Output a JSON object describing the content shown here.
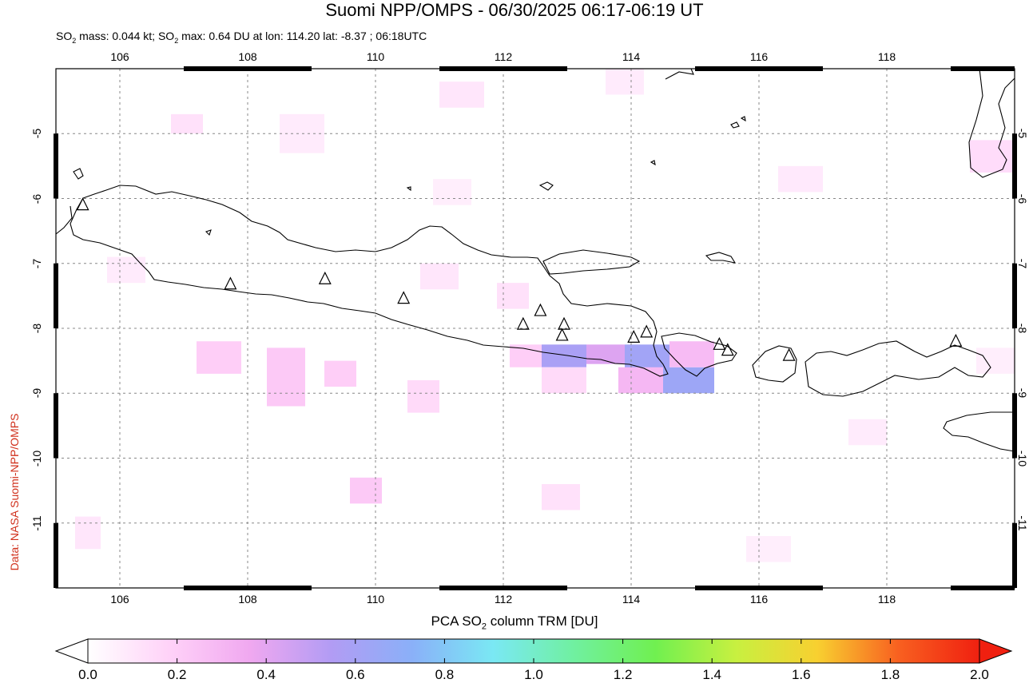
{
  "header": {
    "title": "Suomi NPP/OMPS - 06/30/2025 06:17-06:19 UT",
    "subtitle_parts": {
      "mass_prefix": "SO",
      "mass_sub": "2",
      "mass_text": " mass: 0.044 kt; SO",
      "max_sub": "2",
      "max_text": " max: 0.64 DU at lon: 114.20 lat: -8.37 ; 06:18UTC"
    }
  },
  "side_label": "Data: NASA Suomi-NPP/OMPS",
  "map": {
    "lon_range": [
      105,
      120
    ],
    "lat_range": [
      -12,
      -4
    ],
    "lon_ticks": [
      "106",
      "108",
      "110",
      "112",
      "114",
      "116",
      "118"
    ],
    "lat_ticks": [
      "-5",
      "-6",
      "-7",
      "-8",
      "-9",
      "-10",
      "-11"
    ],
    "volcano_icon": "triangle-icon",
    "volcanoes": [
      {
        "lon": 105.42,
        "lat": -6.1
      },
      {
        "lon": 107.73,
        "lat": -7.32
      },
      {
        "lon": 109.21,
        "lat": -7.24
      },
      {
        "lon": 110.44,
        "lat": -7.54
      },
      {
        "lon": 112.31,
        "lat": -7.94
      },
      {
        "lon": 112.58,
        "lat": -7.73
      },
      {
        "lon": 112.95,
        "lat": -7.94
      },
      {
        "lon": 112.92,
        "lat": -8.11
      },
      {
        "lon": 114.04,
        "lat": -8.14
      },
      {
        "lon": 114.24,
        "lat": -8.06
      },
      {
        "lon": 115.38,
        "lat": -8.25
      },
      {
        "lon": 115.51,
        "lat": -8.34
      },
      {
        "lon": 116.47,
        "lat": -8.42
      },
      {
        "lon": 119.08,
        "lat": -8.2
      }
    ],
    "so2_cells": [
      {
        "lon0": 112.6,
        "lat0": -8.25,
        "lon1": 113.3,
        "lat1": -8.6,
        "value": 0.58
      },
      {
        "lon0": 113.3,
        "lat0": -8.25,
        "lon1": 113.9,
        "lat1": -8.55,
        "value": 0.42
      },
      {
        "lon0": 113.9,
        "lat0": -8.25,
        "lon1": 114.6,
        "lat1": -8.65,
        "value": 0.62
      },
      {
        "lon0": 114.5,
        "lat0": -8.6,
        "lon1": 115.3,
        "lat1": -9.0,
        "value": 0.64
      },
      {
        "lon0": 113.8,
        "lat0": -8.6,
        "lon1": 114.5,
        "lat1": -9.0,
        "value": 0.3
      },
      {
        "lon0": 114.6,
        "lat0": -8.2,
        "lon1": 115.3,
        "lat1": -8.6,
        "value": 0.28
      },
      {
        "lon0": 112.1,
        "lat0": -8.25,
        "lon1": 112.6,
        "lat1": -8.6,
        "value": 0.2
      },
      {
        "lon0": 112.6,
        "lat0": -8.6,
        "lon1": 113.3,
        "lat1": -9.0,
        "value": 0.15
      },
      {
        "lon0": 107.2,
        "lat0": -8.2,
        "lon1": 107.9,
        "lat1": -8.7,
        "value": 0.2
      },
      {
        "lon0": 108.3,
        "lat0": -8.3,
        "lon1": 108.9,
        "lat1": -9.2,
        "value": 0.22
      },
      {
        "lon0": 109.2,
        "lat0": -8.5,
        "lon1": 109.7,
        "lat1": -8.9,
        "value": 0.2
      },
      {
        "lon0": 110.5,
        "lat0": -8.8,
        "lon1": 111.0,
        "lat1": -9.3,
        "value": 0.15
      },
      {
        "lon0": 109.6,
        "lat0": -10.3,
        "lon1": 110.1,
        "lat1": -10.7,
        "value": 0.22
      },
      {
        "lon0": 112.6,
        "lat0": -10.4,
        "lon1": 113.2,
        "lat1": -10.8,
        "value": 0.12
      },
      {
        "lon0": 108.5,
        "lat0": -4.7,
        "lon1": 109.2,
        "lat1": -5.3,
        "value": 0.08
      },
      {
        "lon0": 111.0,
        "lat0": -4.2,
        "lon1": 111.7,
        "lat1": -4.6,
        "value": 0.1
      },
      {
        "lon0": 106.8,
        "lat0": -4.7,
        "lon1": 107.3,
        "lat1": -5.0,
        "value": 0.12
      },
      {
        "lon0": 111.9,
        "lat0": -7.3,
        "lon1": 112.4,
        "lat1": -7.7,
        "value": 0.12
      },
      {
        "lon0": 110.7,
        "lat0": -7.0,
        "lon1": 111.3,
        "lat1": -7.4,
        "value": 0.1
      },
      {
        "lon0": 113.6,
        "lat0": -4.0,
        "lon1": 114.2,
        "lat1": -4.4,
        "value": 0.08
      },
      {
        "lon0": 116.3,
        "lat0": -5.5,
        "lon1": 117.0,
        "lat1": -5.9,
        "value": 0.09
      },
      {
        "lon0": 119.3,
        "lat0": -5.1,
        "lon1": 120.0,
        "lat1": -5.6,
        "value": 0.14
      },
      {
        "lon0": 117.4,
        "lat0": -9.4,
        "lon1": 118.0,
        "lat1": -9.8,
        "value": 0.08
      },
      {
        "lon0": 105.3,
        "lat0": -10.9,
        "lon1": 105.7,
        "lat1": -11.4,
        "value": 0.1
      },
      {
        "lon0": 115.8,
        "lat0": -11.2,
        "lon1": 116.5,
        "lat1": -11.6,
        "value": 0.07
      },
      {
        "lon0": 105.8,
        "lat0": -6.9,
        "lon1": 106.4,
        "lat1": -7.3,
        "value": 0.08
      },
      {
        "lon0": 110.9,
        "lat0": -5.7,
        "lon1": 111.5,
        "lat1": -6.1,
        "value": 0.07
      },
      {
        "lon0": 119.4,
        "lat0": -8.3,
        "lon1": 120.0,
        "lat1": -8.7,
        "value": 0.07
      }
    ]
  },
  "colorbar": {
    "title_prefix": "PCA SO",
    "title_sub": "2",
    "title_suffix": " column TRM [DU]",
    "labels": [
      "0.0",
      "0.2",
      "0.4",
      "0.6",
      "0.8",
      "1.0",
      "1.2",
      "1.4",
      "1.6",
      "1.8",
      "2.0"
    ],
    "range": [
      0,
      2
    ],
    "colors": [
      "#ffffff",
      "#ffd2f8",
      "#f0a8f0",
      "#b29cf4",
      "#8ab0f8",
      "#7ae8f4",
      "#70f0a0",
      "#70f050",
      "#c8f040",
      "#f8d030",
      "#f86020",
      "#f02010"
    ]
  }
}
